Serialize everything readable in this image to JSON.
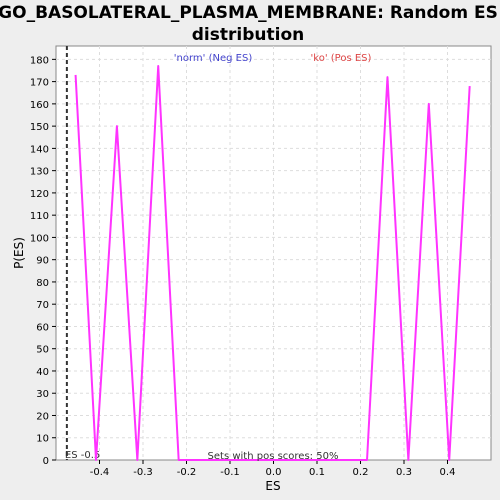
{
  "chart_data": {
    "type": "line",
    "title_line1": "GO_BASOLATERAL_PLASMA_MEMBRANE: Random ES",
    "title_line2": "distribution",
    "xlabel": "ES",
    "ylabel": "P(ES)",
    "xlim": [
      -0.5,
      0.5
    ],
    "ylim": [
      0,
      186
    ],
    "xticks": [
      -0.4,
      -0.3,
      -0.2,
      -0.1,
      0.0,
      0.1,
      0.2,
      0.3,
      0.4
    ],
    "xtick_labels": [
      "-0.4",
      "-0.3",
      "-0.2",
      "-0.1",
      "0.0",
      "0.1",
      "0.2",
      "0.3",
      "0.4"
    ],
    "yticks": [
      0,
      10,
      20,
      30,
      40,
      50,
      60,
      70,
      80,
      90,
      100,
      110,
      120,
      130,
      140,
      150,
      160,
      170,
      180
    ],
    "grid": true,
    "series": [
      {
        "color": "#ff33ff",
        "x": [
          -0.455,
          -0.408,
          -0.36,
          -0.313,
          -0.265,
          -0.218,
          -0.2,
          0.0,
          0.2,
          0.215,
          0.262,
          0.31,
          0.357,
          0.404,
          0.451
        ],
        "y": [
          173,
          0,
          150,
          0,
          177,
          0,
          0,
          0,
          0,
          0,
          172,
          0,
          160,
          0,
          168
        ]
      }
    ],
    "observed_es": {
      "x": -0.475,
      "label": "ES -0.5"
    },
    "legend": [
      {
        "label": "'norm' (Neg ES)",
        "color": "#4444cc"
      },
      {
        "label": "'ko' (Pos ES)",
        "color": "#dd4444"
      }
    ],
    "annotation": "Sets with pos scores: 50%"
  }
}
